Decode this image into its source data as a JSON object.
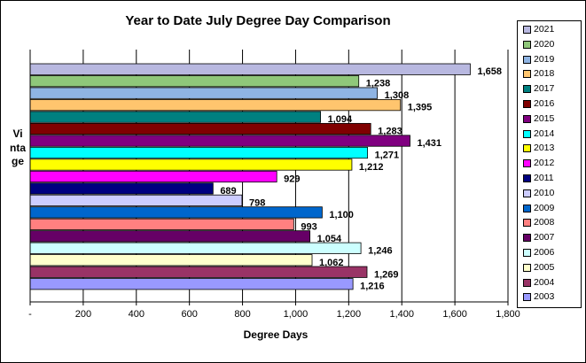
{
  "chart_data": {
    "type": "bar",
    "orientation": "horizontal",
    "title": "Year to Date July Degree Day Comparison",
    "xlabel": "Degree Days",
    "ylabel": "Vintage",
    "xlim": [
      0,
      1800
    ],
    "xticks": [
      0,
      200,
      400,
      600,
      800,
      1000,
      1200,
      1400,
      1600,
      1800
    ],
    "xtick_labels": [
      "-",
      "200",
      "400",
      "600",
      "800",
      "1,000",
      "1,200",
      "1,400",
      "1,600",
      "1,800"
    ],
    "grid": "vertical",
    "legend_position": "right",
    "categories": [
      "2021",
      "2020",
      "2019",
      "2018",
      "2017",
      "2016",
      "2015",
      "2014",
      "2013",
      "2012",
      "2011",
      "2010",
      "2009",
      "2008",
      "2007",
      "2006",
      "2005",
      "2004",
      "2003"
    ],
    "values": [
      1658,
      1238,
      1308,
      1395,
      1094,
      1283,
      1431,
      1271,
      1212,
      929,
      689,
      798,
      1100,
      993,
      1054,
      1246,
      1062,
      1269,
      1216
    ],
    "value_labels": [
      "1,658",
      "1,238",
      "1,308",
      "1,395",
      "1,094",
      "1,283",
      "1,431",
      "1,271",
      "1,212",
      "929",
      "689",
      "798",
      "1,100",
      "993",
      "1,054",
      "1,246",
      "1,062",
      "1,269",
      "1,216"
    ],
    "colors": [
      "#B8B8E0",
      "#8FC77A",
      "#8FB4E3",
      "#FFC56E",
      "#008080",
      "#800000",
      "#800080",
      "#00FFFF",
      "#FFFF00",
      "#FF00FF",
      "#000080",
      "#CCCCFF",
      "#0066CC",
      "#FF8080",
      "#660066",
      "#CCFFFF",
      "#FFFFCC",
      "#993366",
      "#9999FF"
    ]
  }
}
